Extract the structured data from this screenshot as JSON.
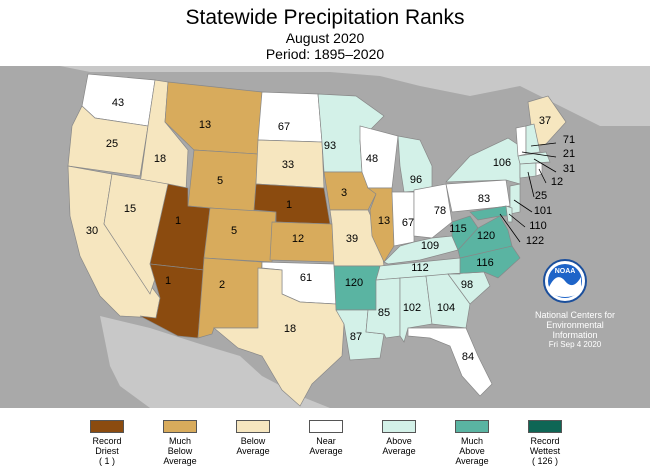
{
  "header": {
    "title": "Statewide Precipitation Ranks",
    "month": "August 2020",
    "period": "Period: 1895–2020"
  },
  "colors": {
    "record_driest": "#8b4b0f",
    "much_below": "#d8ab5c",
    "below": "#f6e6bf",
    "near": "#ffffff",
    "above": "#d3f1e8",
    "much_above": "#5ab4a2",
    "record_wettest": "#0e6655",
    "background": "#a9a9a9"
  },
  "states": [
    {
      "abbr": "WA",
      "rank": "43"
    },
    {
      "abbr": "OR",
      "rank": "25"
    },
    {
      "abbr": "CA",
      "rank": "30"
    },
    {
      "abbr": "ID",
      "rank": "18"
    },
    {
      "abbr": "NV",
      "rank": "15"
    },
    {
      "abbr": "MT",
      "rank": "13"
    },
    {
      "abbr": "WY",
      "rank": "5"
    },
    {
      "abbr": "UT",
      "rank": "1"
    },
    {
      "abbr": "AZ",
      "rank": "1"
    },
    {
      "abbr": "CO",
      "rank": "5"
    },
    {
      "abbr": "NM",
      "rank": "2"
    },
    {
      "abbr": "ND",
      "rank": "67"
    },
    {
      "abbr": "SD",
      "rank": "33"
    },
    {
      "abbr": "NE",
      "rank": "1"
    },
    {
      "abbr": "KS",
      "rank": "12"
    },
    {
      "abbr": "OK",
      "rank": "61"
    },
    {
      "abbr": "TX",
      "rank": "18"
    },
    {
      "abbr": "MN",
      "rank": "93"
    },
    {
      "abbr": "IA",
      "rank": "3"
    },
    {
      "abbr": "MO",
      "rank": "39"
    },
    {
      "abbr": "AR",
      "rank": "120"
    },
    {
      "abbr": "LA",
      "rank": "87"
    },
    {
      "abbr": "WI",
      "rank": "48"
    },
    {
      "abbr": "IL",
      "rank": "13"
    },
    {
      "abbr": "MI",
      "rank": "96"
    },
    {
      "abbr": "IN",
      "rank": "67"
    },
    {
      "abbr": "OH",
      "rank": "78"
    },
    {
      "abbr": "KY",
      "rank": "109"
    },
    {
      "abbr": "TN",
      "rank": "112"
    },
    {
      "abbr": "MS",
      "rank": "85"
    },
    {
      "abbr": "AL",
      "rank": "102"
    },
    {
      "abbr": "GA",
      "rank": "104"
    },
    {
      "abbr": "FL",
      "rank": "84"
    },
    {
      "abbr": "SC",
      "rank": "98"
    },
    {
      "abbr": "NC",
      "rank": "116"
    },
    {
      "abbr": "VA",
      "rank": "120"
    },
    {
      "abbr": "WV",
      "rank": "115"
    },
    {
      "abbr": "PA",
      "rank": "83"
    },
    {
      "abbr": "NY",
      "rank": "106"
    },
    {
      "abbr": "ME",
      "rank": "37"
    },
    {
      "abbr": "NH",
      "rank": "71"
    },
    {
      "abbr": "VT",
      "rank": "21"
    },
    {
      "abbr": "MA",
      "rank": "31"
    },
    {
      "abbr": "RI",
      "rank": "12"
    },
    {
      "abbr": "CT",
      "rank": "25"
    },
    {
      "abbr": "NJ",
      "rank": "101"
    },
    {
      "abbr": "DE",
      "rank": "110"
    },
    {
      "abbr": "MD",
      "rank": "122"
    }
  ],
  "noaa": {
    "logo_text": "NOAA",
    "line1": "National Centers for",
    "line2": "Environmental",
    "line3": "Information",
    "date": "Fri Sep  4 2020"
  },
  "legend": [
    {
      "line1": "Record",
      "line2": "Driest",
      "line3": "( 1 )",
      "color": "#8b4b0f"
    },
    {
      "line1": "Much",
      "line2": "Below",
      "line3": "Average",
      "color": "#d8ab5c"
    },
    {
      "line1": "Below",
      "line2": "Average",
      "line3": "",
      "color": "#f6e6bf"
    },
    {
      "line1": "Near",
      "line2": "Average",
      "line3": "",
      "color": "#ffffff"
    },
    {
      "line1": "Above",
      "line2": "Average",
      "line3": "",
      "color": "#d3f1e8"
    },
    {
      "line1": "Much",
      "line2": "Above",
      "line3": "Average",
      "color": "#5ab4a2"
    },
    {
      "line1": "Record",
      "line2": "Wettest",
      "line3": "( 126 )",
      "color": "#0e6655"
    }
  ]
}
